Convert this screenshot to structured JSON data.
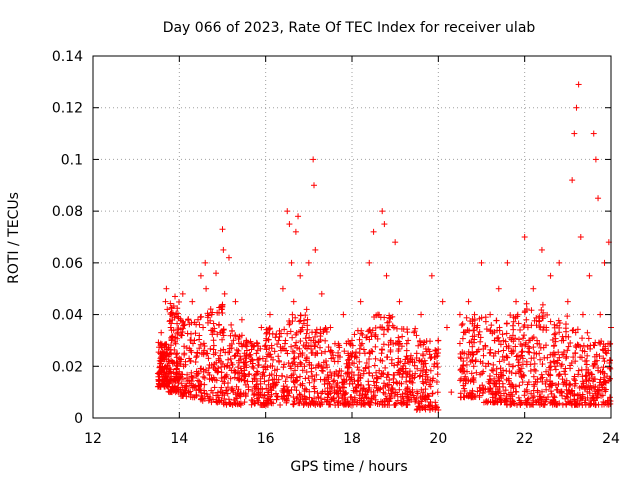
{
  "chart_data": {
    "type": "scatter",
    "title": "Day 066 of 2023, Rate Of TEC Index for receiver ulab",
    "xlabel": "GPS time / hours",
    "ylabel": "ROTI / TECUs",
    "xlim": [
      12,
      24
    ],
    "ylim": [
      0,
      0.14
    ],
    "x_ticks": [
      12,
      14,
      16,
      18,
      20,
      22,
      24
    ],
    "x_tick_labels": [
      "12",
      "14",
      "16",
      "18",
      "20",
      "22",
      "24"
    ],
    "y_ticks": [
      0,
      0.02,
      0.04,
      0.06,
      0.08,
      0.1,
      0.12,
      0.14
    ],
    "y_tick_labels": [
      "0",
      "0.02",
      "0.04",
      "0.06",
      "0.08",
      "0.1",
      "0.12",
      "0.14"
    ],
    "grid": true,
    "legend": "none",
    "marker": "+",
    "color": "#ff0000",
    "series": [
      {
        "points": [
          [
            13.55,
            0.012
          ],
          [
            13.55,
            0.02
          ],
          [
            13.56,
            0.025
          ],
          [
            13.58,
            0.033
          ],
          [
            13.6,
            0.018
          ],
          [
            13.62,
            0.015
          ],
          [
            13.65,
            0.028
          ],
          [
            13.68,
            0.045
          ],
          [
            13.7,
            0.05
          ],
          [
            13.72,
            0.042
          ],
          [
            13.75,
            0.022
          ],
          [
            13.78,
            0.018
          ],
          [
            13.8,
            0.035
          ],
          [
            13.82,
            0.03
          ],
          [
            13.85,
            0.012
          ],
          [
            13.9,
            0.047
          ],
          [
            13.92,
            0.04
          ],
          [
            13.95,
            0.025
          ],
          [
            14.0,
            0.015
          ],
          [
            14.05,
            0.032
          ],
          [
            14.08,
            0.048
          ],
          [
            14.1,
            0.02
          ],
          [
            14.15,
            0.01
          ],
          [
            14.2,
            0.038
          ],
          [
            14.25,
            0.022
          ],
          [
            14.3,
            0.045
          ],
          [
            14.35,
            0.03
          ],
          [
            14.4,
            0.018
          ],
          [
            14.45,
            0.012
          ],
          [
            14.5,
            0.055
          ],
          [
            14.55,
            0.035
          ],
          [
            14.6,
            0.06
          ],
          [
            14.62,
            0.05
          ],
          [
            14.65,
            0.025
          ],
          [
            14.7,
            0.015
          ],
          [
            14.75,
            0.04
          ],
          [
            14.8,
            0.028
          ],
          [
            14.85,
            0.056
          ],
          [
            14.9,
            0.018
          ],
          [
            14.95,
            0.033
          ],
          [
            15.0,
            0.073
          ],
          [
            15.02,
            0.065
          ],
          [
            15.05,
            0.048
          ],
          [
            15.1,
            0.02
          ],
          [
            15.15,
            0.062
          ],
          [
            15.2,
            0.036
          ],
          [
            15.25,
            0.01
          ],
          [
            15.3,
            0.045
          ],
          [
            15.35,
            0.025
          ],
          [
            15.4,
            0.015
          ],
          [
            15.45,
            0.038
          ],
          [
            15.5,
            0.02
          ],
          [
            15.55,
            0.03
          ],
          [
            15.6,
            0.012
          ],
          [
            15.7,
            0.028
          ],
          [
            15.8,
            0.018
          ],
          [
            15.9,
            0.035
          ],
          [
            16.0,
            0.022
          ],
          [
            16.1,
            0.04
          ],
          [
            16.2,
            0.015
          ],
          [
            16.3,
            0.03
          ],
          [
            16.4,
            0.05
          ],
          [
            16.5,
            0.08
          ],
          [
            16.55,
            0.075
          ],
          [
            16.6,
            0.06
          ],
          [
            16.65,
            0.045
          ],
          [
            16.7,
            0.072
          ],
          [
            16.75,
            0.078
          ],
          [
            16.8,
            0.055
          ],
          [
            16.85,
            0.035
          ],
          [
            16.9,
            0.02
          ],
          [
            16.95,
            0.042
          ],
          [
            17.0,
            0.06
          ],
          [
            17.05,
            0.03
          ],
          [
            17.1,
            0.1
          ],
          [
            17.12,
            0.09
          ],
          [
            17.15,
            0.065
          ],
          [
            17.2,
            0.025
          ],
          [
            17.3,
            0.048
          ],
          [
            17.4,
            0.015
          ],
          [
            17.5,
            0.035
          ],
          [
            17.6,
            0.01
          ],
          [
            17.7,
            0.028
          ],
          [
            17.8,
            0.04
          ],
          [
            17.9,
            0.02
          ],
          [
            18.0,
            0.03
          ],
          [
            18.1,
            0.012
          ],
          [
            18.2,
            0.045
          ],
          [
            18.3,
            0.025
          ],
          [
            18.4,
            0.06
          ],
          [
            18.5,
            0.072
          ],
          [
            18.6,
            0.04
          ],
          [
            18.7,
            0.08
          ],
          [
            18.75,
            0.075
          ],
          [
            18.8,
            0.055
          ],
          [
            18.9,
            0.03
          ],
          [
            19.0,
            0.068
          ],
          [
            19.1,
            0.045
          ],
          [
            19.2,
            0.018
          ],
          [
            19.3,
            0.03
          ],
          [
            19.4,
            0.01
          ],
          [
            19.5,
            0.025
          ],
          [
            19.6,
            0.04
          ],
          [
            19.7,
            0.015
          ],
          [
            19.8,
            0.005
          ],
          [
            19.85,
            0.055
          ],
          [
            19.9,
            0.02
          ],
          [
            20.0,
            0.03
          ],
          [
            20.1,
            0.045
          ],
          [
            20.2,
            0.035
          ],
          [
            20.3,
            0.01
          ],
          [
            20.5,
            0.04
          ],
          [
            20.6,
            0.025
          ],
          [
            20.7,
            0.045
          ],
          [
            20.8,
            0.015
          ],
          [
            20.9,
            0.035
          ],
          [
            21.0,
            0.06
          ],
          [
            21.1,
            0.02
          ],
          [
            21.2,
            0.04
          ],
          [
            21.3,
            0.03
          ],
          [
            21.4,
            0.05
          ],
          [
            21.5,
            0.012
          ],
          [
            21.6,
            0.06
          ],
          [
            21.7,
            0.025
          ],
          [
            21.8,
            0.045
          ],
          [
            21.9,
            0.018
          ],
          [
            22.0,
            0.07
          ],
          [
            22.1,
            0.03
          ],
          [
            22.2,
            0.05
          ],
          [
            22.3,
            0.015
          ],
          [
            22.4,
            0.065
          ],
          [
            22.5,
            0.035
          ],
          [
            22.6,
            0.055
          ],
          [
            22.7,
            0.02
          ],
          [
            22.8,
            0.06
          ],
          [
            22.9,
            0.03
          ],
          [
            23.0,
            0.045
          ],
          [
            23.1,
            0.092
          ],
          [
            23.15,
            0.11
          ],
          [
            23.2,
            0.12
          ],
          [
            23.25,
            0.129
          ],
          [
            23.3,
            0.07
          ],
          [
            23.35,
            0.04
          ],
          [
            23.4,
            0.022
          ],
          [
            23.5,
            0.055
          ],
          [
            23.6,
            0.11
          ],
          [
            23.65,
            0.1
          ],
          [
            23.7,
            0.085
          ],
          [
            23.75,
            0.04
          ],
          [
            23.8,
            0.018
          ],
          [
            23.85,
            0.06
          ],
          [
            23.9,
            0.025
          ],
          [
            23.95,
            0.068
          ],
          [
            24.0,
            0.035
          ]
        ]
      }
    ],
    "clusters": [
      {
        "x": [
          13.5,
          13.75
        ],
        "y_base": 0.012,
        "y_top": 0.03
      },
      {
        "x": [
          13.75,
          14.0
        ],
        "y_base": 0.01,
        "y_top": 0.045
      },
      {
        "x": [
          14.0,
          14.5
        ],
        "y_base": 0.008,
        "y_top": 0.04
      },
      {
        "x": [
          14.5,
          15.0
        ],
        "y_base": 0.006,
        "y_top": 0.045
      },
      {
        "x": [
          15.0,
          15.5
        ],
        "y_base": 0.005,
        "y_top": 0.035
      },
      {
        "x": [
          15.5,
          16.0
        ],
        "y_base": 0.005,
        "y_top": 0.03
      },
      {
        "x": [
          16.0,
          16.5
        ],
        "y_base": 0.005,
        "y_top": 0.035
      },
      {
        "x": [
          16.5,
          17.0
        ],
        "y_base": 0.005,
        "y_top": 0.04
      },
      {
        "x": [
          17.0,
          17.5
        ],
        "y_base": 0.005,
        "y_top": 0.035
      },
      {
        "x": [
          17.5,
          18.0
        ],
        "y_base": 0.005,
        "y_top": 0.03
      },
      {
        "x": [
          18.0,
          18.5
        ],
        "y_base": 0.005,
        "y_top": 0.035
      },
      {
        "x": [
          18.5,
          19.0
        ],
        "y_base": 0.005,
        "y_top": 0.04
      },
      {
        "x": [
          19.0,
          19.5
        ],
        "y_base": 0.005,
        "y_top": 0.035
      },
      {
        "x": [
          19.5,
          20.0
        ],
        "y_base": 0.003,
        "y_top": 0.03
      },
      {
        "x": [
          20.5,
          21.0
        ],
        "y_base": 0.008,
        "y_top": 0.04
      },
      {
        "x": [
          21.0,
          21.5
        ],
        "y_base": 0.006,
        "y_top": 0.04
      },
      {
        "x": [
          21.5,
          22.0
        ],
        "y_base": 0.005,
        "y_top": 0.04
      },
      {
        "x": [
          22.0,
          22.5
        ],
        "y_base": 0.005,
        "y_top": 0.045
      },
      {
        "x": [
          22.5,
          23.0
        ],
        "y_base": 0.005,
        "y_top": 0.04
      },
      {
        "x": [
          23.0,
          23.5
        ],
        "y_base": 0.005,
        "y_top": 0.035
      },
      {
        "x": [
          23.5,
          24.0
        ],
        "y_base": 0.005,
        "y_top": 0.03
      }
    ]
  }
}
